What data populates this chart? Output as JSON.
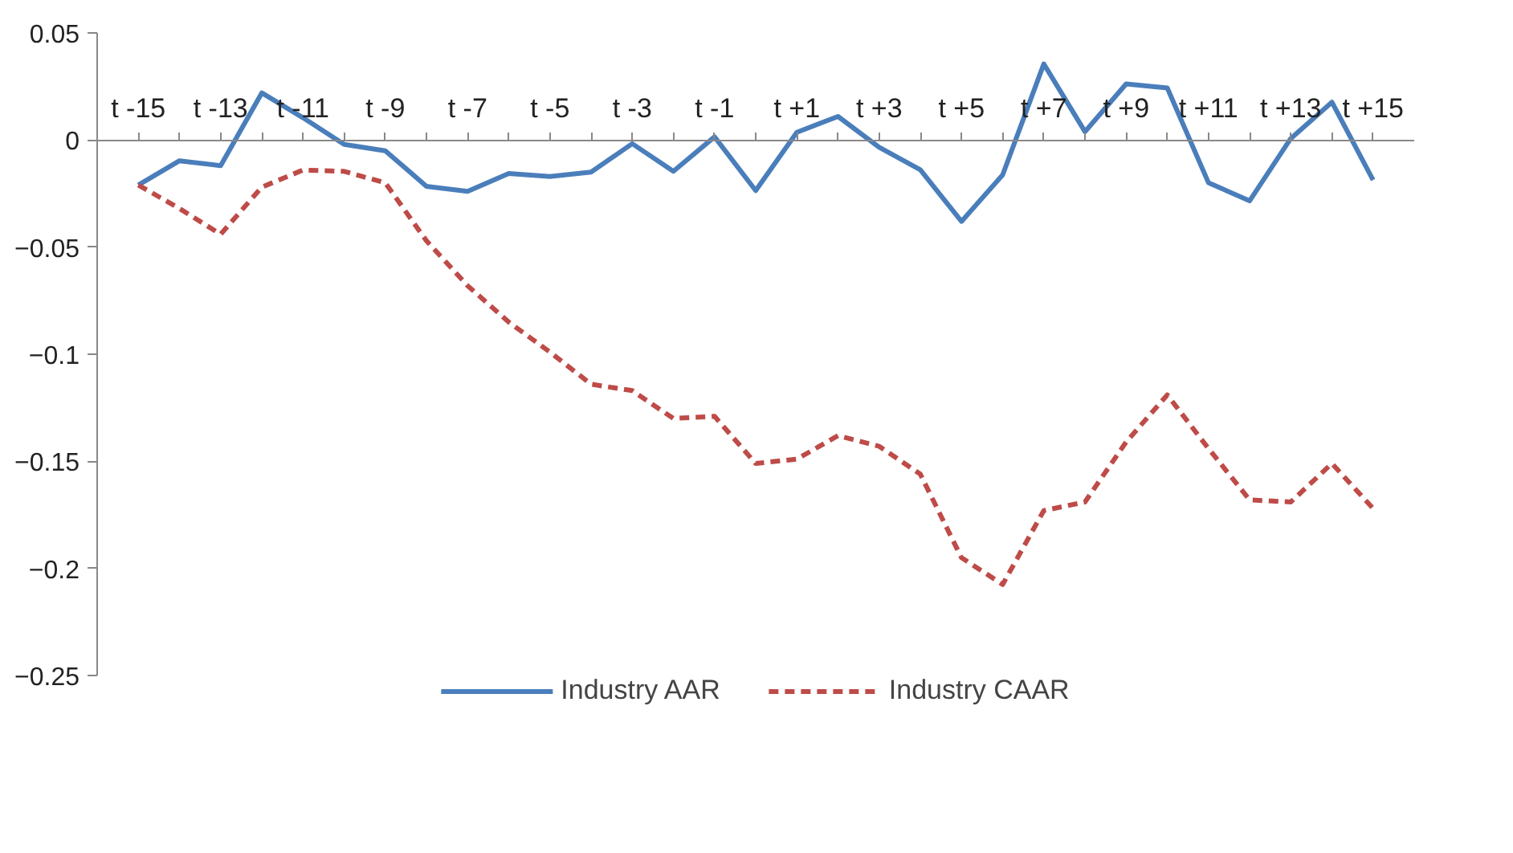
{
  "chart_data": {
    "type": "line",
    "categories": [
      "t -15",
      null,
      "t -13",
      null,
      "t -11",
      null,
      "t -9",
      null,
      "t -7",
      null,
      "t -5",
      null,
      "t -3",
      null,
      "t -1",
      null,
      "t +1",
      null,
      "t +3",
      null,
      "t +5",
      null,
      "t +7",
      null,
      "t +9",
      null,
      "t +11",
      null,
      "t +13",
      null,
      "t +15"
    ],
    "series": [
      {
        "name": "Industry AAR",
        "color": "#4a7ebb",
        "line_style": "solid",
        "values": [
          -0.021,
          -0.0097,
          -0.012,
          0.022,
          0.0104,
          -0.002,
          -0.005,
          -0.0216,
          -0.024,
          -0.0156,
          -0.017,
          -0.015,
          -0.0017,
          -0.0146,
          0.0015,
          -0.0236,
          0.0036,
          0.011,
          -0.0034,
          -0.0139,
          -0.038,
          -0.0163,
          0.0355,
          0.0039,
          0.0262,
          0.0243,
          -0.0199,
          -0.0284,
          0.0007,
          0.0177,
          -0.0187
        ]
      },
      {
        "name": "Industry CAAR",
        "color": "#be4b48",
        "line_style": "dashed",
        "values": [
          -0.021,
          -0.032,
          -0.044,
          -0.022,
          -0.014,
          -0.0146,
          -0.02,
          -0.047,
          -0.068,
          -0.085,
          -0.099,
          -0.114,
          -0.117,
          -0.13,
          -0.129,
          -0.151,
          -0.149,
          -0.138,
          -0.143,
          -0.156,
          -0.195,
          -0.2075,
          -0.173,
          -0.169,
          -0.141,
          -0.119,
          -0.144,
          -0.168,
          -0.169,
          -0.151,
          -0.172
        ]
      }
    ],
    "ylim": [
      -0.25,
      0.05
    ],
    "yticks": [
      0.05,
      0,
      -0.05,
      -0.1,
      -0.15,
      -0.2,
      -0.25
    ],
    "grid": false,
    "legend": "bottom",
    "marker": "none"
  }
}
